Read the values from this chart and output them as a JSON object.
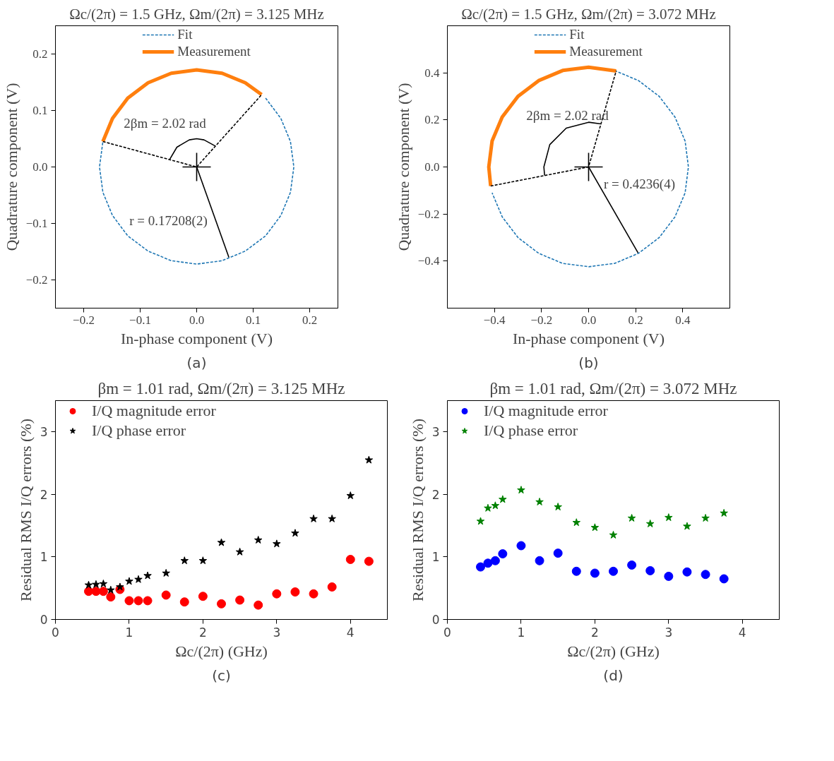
{
  "chart_data": [
    {
      "type": "line",
      "title": "Ωc/(2π) = 1.5 GHz, Ωm/(2π) = 3.125 MHz",
      "xlabel": "In-phase component (V)",
      "ylabel": "Quadrature component (V)",
      "xlim": [
        -0.25,
        0.25
      ],
      "ylim": [
        -0.25,
        0.25
      ],
      "xticks": [
        {
          "value": -0.2,
          "label": "−0.2"
        },
        {
          "value": -0.1,
          "label": "−0.1"
        },
        {
          "value": 0,
          "label": "0.0"
        },
        0.1,
        0.2
      ],
      "yticks": [
        {
          "value": -0.2,
          "label": "−0.2"
        },
        {
          "value": -0.1,
          "label": "−0.1"
        },
        {
          "value": 0,
          "label": "0.0"
        },
        0.1,
        0.2
      ],
      "grid": false,
      "legend": "top",
      "series": [
        {
          "name": "Fit",
          "color": "#1f77b4",
          "line_style": "dashed",
          "x": [
            0.122,
            0.149,
            0.166,
            0.172,
            0.166,
            0.149,
            0.122,
            0.086,
            0.045,
            0,
            -0.045,
            -0.086,
            -0.122,
            -0.149,
            -0.166,
            -0.172,
            -0.166
          ],
          "values": [
            0.122,
            0.086,
            0.045,
            0,
            -0.045,
            -0.086,
            -0.122,
            -0.149,
            -0.166,
            -0.172,
            -0.166,
            -0.149,
            -0.122,
            -0.086,
            -0.045,
            0,
            0.045
          ]
        },
        {
          "name": "Measurement",
          "color": "#ff7f0e",
          "line_style": "solid",
          "x": [
            -0.166,
            -0.149,
            -0.122,
            -0.086,
            -0.045,
            0,
            0.045,
            0.086,
            0.115
          ],
          "values": [
            0.045,
            0.086,
            0.122,
            0.149,
            0.166,
            0.172,
            0.166,
            0.149,
            0.128
          ]
        },
        {
          "color": "#000000",
          "line_style": "dashed",
          "x": [
            -0.166,
            0,
            0.115
          ],
          "values": [
            0.045,
            0,
            0.128
          ]
        },
        {
          "color": "#000000",
          "line_style": "solid",
          "x": [
            0.033,
            0.013,
            0,
            -0.013,
            -0.035,
            -0.048
          ],
          "values": [
            0.037,
            0.048,
            0.05,
            0.048,
            0.035,
            0.013
          ]
        },
        {
          "color": "#000000",
          "line_style": "solid",
          "x": [
            0,
            0.057
          ],
          "values": [
            0,
            -0.16
          ]
        },
        {
          "color": "#000000",
          "line_style": "solid",
          "x": [
            -0.025,
            0.025
          ],
          "values": [
            0,
            0
          ]
        },
        {
          "color": "#000000",
          "line_style": "solid",
          "x": [
            0,
            0
          ],
          "values": [
            -0.025,
            0.025
          ]
        }
      ],
      "annotations": [
        "2βm = 2.02 rad",
        "r = 0.17208(2)",
        "(a)"
      ]
    },
    {
      "type": "line",
      "title": "Ωc/(2π) = 1.5 GHz, Ωm/(2π) = 3.072 MHz",
      "xlabel": "In-phase component (V)",
      "ylabel": "Quadrature component (V)",
      "xlim": [
        -0.6,
        0.6
      ],
      "ylim": [
        -0.6,
        0.6
      ],
      "xticks": [
        {
          "value": -0.4,
          "label": "−0.4"
        },
        {
          "value": -0.2,
          "label": "−0.2"
        },
        {
          "value": 0,
          "label": "0.0"
        },
        0.2,
        0.4
      ],
      "yticks": [
        {
          "value": -0.4,
          "label": "−0.4"
        },
        {
          "value": -0.2,
          "label": "−0.2"
        },
        {
          "value": 0,
          "label": "0.0"
        },
        0.2,
        0.4
      ],
      "grid": false,
      "legend": "top",
      "series": [
        {
          "name": "Fit",
          "color": "#1f77b4",
          "line_style": "dashed",
          "x": [
            0.11,
            0.212,
            0.3,
            0.367,
            0.41,
            0.424,
            0.41,
            0.367,
            0.3,
            0.212,
            0.11,
            0,
            -0.11,
            -0.212,
            -0.3,
            -0.367,
            -0.41
          ],
          "values": [
            0.41,
            0.367,
            0.3,
            0.212,
            0.11,
            0,
            -0.11,
            -0.212,
            -0.3,
            -0.367,
            -0.41,
            -0.424,
            -0.41,
            -0.367,
            -0.3,
            -0.212,
            -0.11
          ]
        },
        {
          "name": "Measurement",
          "color": "#ff7f0e",
          "line_style": "solid",
          "x": [
            -0.416,
            -0.424,
            -0.41,
            -0.367,
            -0.3,
            -0.212,
            -0.11,
            0,
            0.117
          ],
          "values": [
            -0.081,
            0,
            0.11,
            0.212,
            0.3,
            0.367,
            0.41,
            0.424,
            0.408
          ]
        },
        {
          "color": "#000000",
          "line_style": "dashed",
          "x": [
            -0.416,
            0,
            0.117
          ],
          "values": [
            -0.081,
            0,
            0.408
          ]
        },
        {
          "color": "#000000",
          "line_style": "solid",
          "x": [
            0.052,
            0,
            -0.095,
            -0.165,
            -0.19,
            -0.187
          ],
          "values": [
            0.183,
            0.19,
            0.165,
            0.095,
            0,
            -0.036
          ]
        },
        {
          "color": "#000000",
          "line_style": "solid",
          "x": [
            0,
            0.21
          ],
          "values": [
            0,
            -0.365
          ]
        },
        {
          "color": "#000000",
          "line_style": "solid",
          "x": [
            -0.06,
            0.06
          ],
          "values": [
            0,
            0
          ]
        },
        {
          "color": "#000000",
          "line_style": "solid",
          "x": [
            0,
            0
          ],
          "values": [
            -0.06,
            0.06
          ]
        }
      ],
      "annotations": [
        "2βm = 2.02 rad",
        "r = 0.4236(4)",
        "(b)"
      ]
    },
    {
      "type": "scatter",
      "title": "βm = 1.01 rad, Ωm/(2π) = 3.125 MHz",
      "xlabel": "Ωc/(2π) (GHz)",
      "ylabel": "Residual RMS I/Q errors (%)",
      "xlim": [
        0,
        4.5
      ],
      "ylim": [
        0,
        3.5
      ],
      "xticks": [
        0,
        1,
        2,
        3,
        4
      ],
      "yticks": [
        0,
        1,
        2,
        3
      ],
      "grid": false,
      "legend": "top left",
      "x": [
        0.45,
        0.55,
        0.65,
        0.75,
        0.875,
        1.0,
        1.125,
        1.25,
        1.5,
        1.75,
        2.0,
        2.25,
        2.5,
        2.75,
        3.0,
        3.25,
        3.5,
        3.75,
        4.0,
        4.25
      ],
      "series": [
        {
          "name": "I/Q magnitude error",
          "color": "#ff0000",
          "marker": "circle",
          "values": [
            0.45,
            0.45,
            0.45,
            0.36,
            0.48,
            0.3,
            0.3,
            0.3,
            0.39,
            0.28,
            0.37,
            0.25,
            0.31,
            0.23,
            0.41,
            0.44,
            0.41,
            0.52,
            0.96,
            0.93
          ]
        },
        {
          "name": "I/Q phase error",
          "color": "#000000",
          "marker": "star",
          "values": [
            0.55,
            0.56,
            0.57,
            0.47,
            0.52,
            0.61,
            0.64,
            0.7,
            0.74,
            0.94,
            0.94,
            1.23,
            1.08,
            1.27,
            1.21,
            1.38,
            1.61,
            1.61,
            1.98,
            2.55
          ]
        }
      ],
      "annotations": [
        "(c)"
      ]
    },
    {
      "type": "scatter",
      "title": "βm = 1.01 rad, Ωm/(2π) = 3.072 MHz",
      "xlabel": "Ωc/(2π) (GHz)",
      "ylabel": "Residual RMS I/Q errors (%)",
      "xlim": [
        0,
        4.5
      ],
      "ylim": [
        0,
        3.5
      ],
      "xticks": [
        0,
        1,
        2,
        3,
        4
      ],
      "yticks": [
        0,
        1,
        2,
        3
      ],
      "grid": false,
      "legend": "top left",
      "x": [
        0.45,
        0.55,
        0.65,
        0.75,
        1.0,
        1.25,
        1.5,
        1.75,
        2.0,
        2.25,
        2.5,
        2.75,
        3.0,
        3.25,
        3.5,
        3.75
      ],
      "series": [
        {
          "name": "I/Q magnitude error",
          "color": "#0000ff",
          "marker": "circle",
          "values": [
            0.84,
            0.9,
            0.94,
            1.05,
            1.18,
            0.94,
            1.06,
            0.77,
            0.74,
            0.77,
            0.87,
            0.78,
            0.69,
            0.76,
            0.72,
            0.65
          ]
        },
        {
          "name": "I/Q phase error",
          "color": "#008000",
          "marker": "star",
          "values": [
            1.57,
            1.78,
            1.82,
            1.92,
            2.07,
            1.88,
            1.8,
            1.55,
            1.47,
            1.35,
            1.62,
            1.53,
            1.63,
            1.49,
            1.62,
            1.7
          ]
        }
      ],
      "annotations": [
        "(d)"
      ]
    }
  ]
}
